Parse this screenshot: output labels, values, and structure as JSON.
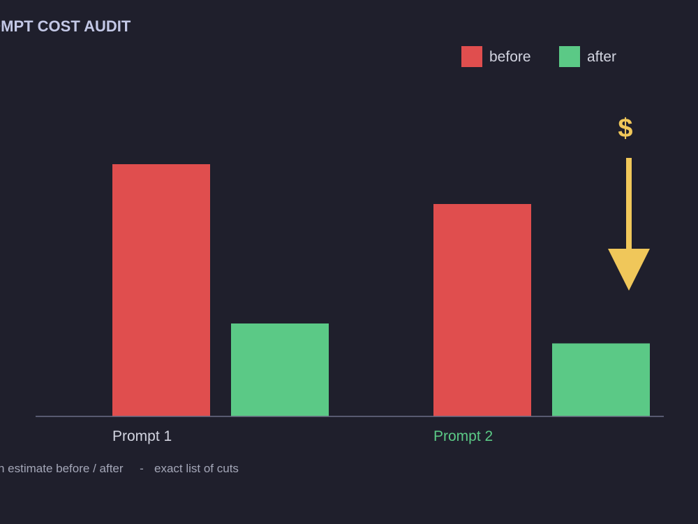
{
  "title": "OMPT COST AUDIT",
  "footer": {
    "left": "n estimate before / after",
    "sep": "-",
    "right": "exact list of cuts"
  },
  "annotation": {
    "symbol": "$",
    "icon": "down-arrow-icon",
    "color": "#f0c75a"
  },
  "colors": {
    "background": "#1f1f2c",
    "before": "#e04e4e",
    "after": "#5bc986",
    "axis": "#6c6f86",
    "tick_default": "#d2d4e0",
    "tick_highlight": "#5bc986"
  },
  "chart_data": {
    "type": "bar",
    "title": "OMPT COST AUDIT",
    "categories": [
      "Prompt 1",
      "Prompt 2"
    ],
    "highlight_category": "Prompt 2",
    "series": [
      {
        "name": "before",
        "values": [
          38,
          32
        ]
      },
      {
        "name": "after",
        "values": [
          14,
          11
        ]
      }
    ],
    "ylim": [
      0,
      50
    ],
    "grid": false,
    "legend": "top-right",
    "xlabel": "",
    "ylabel": ""
  }
}
